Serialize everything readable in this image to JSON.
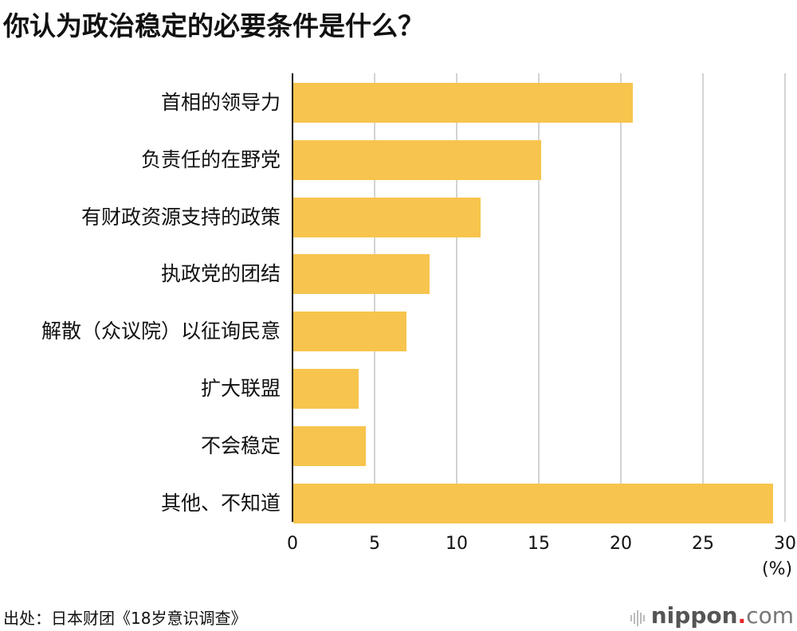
{
  "title": "你认为政治稳定的必要条件是什么？",
  "chart_data": {
    "type": "bar",
    "orientation": "horizontal",
    "title": "你认为政治稳定的必要条件是什么？",
    "categories": [
      "首相的领导力",
      "负责任的在野党",
      "有财政资源支持的政策",
      "执政党的团结",
      "解散（众议院）以征询民意",
      "扩大联盟",
      "不会稳定",
      "其他、不知道"
    ],
    "values": [
      20.7,
      15.1,
      11.4,
      8.3,
      6.9,
      4.0,
      4.4,
      29.2
    ],
    "xlabel": "(%)",
    "ylabel": "",
    "xlim": [
      0,
      30
    ],
    "xticks": [
      "0",
      "5",
      "10",
      "15",
      "20",
      "25",
      "30"
    ],
    "grid": true,
    "bar_color": "#f7c44d"
  },
  "axis": {
    "unit": "(%)"
  },
  "footer": {
    "source": "出处：日本财团《18岁意识调查》",
    "logo_main": "nippon",
    "logo_dot": ".",
    "logo_com": "com"
  }
}
